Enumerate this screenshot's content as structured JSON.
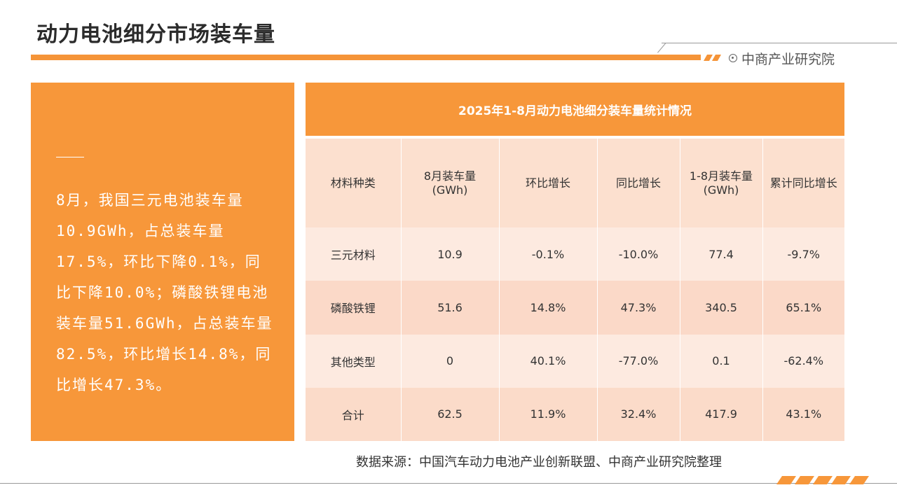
{
  "header": {
    "title": "动力电池细分市场装车量",
    "brand": "中商产业研究院"
  },
  "summary": {
    "text": "8月，我国三元电池装车量10.9GWh，占总装车量17.5%，环比下降0.1%，同比下降10.0%；磷酸铁锂电池装车量51.6GWh，占总装车量82.5%，环比增长14.8%，同比增长47.3%。"
  },
  "table": {
    "title": "2025年1-8月动力电池细分装车量统计情况",
    "columns": [
      "材料种类",
      "8月装车量\n(GWh)",
      "环比增长",
      "同比增长",
      "1-8月装车量\n(GWh)",
      "累计同比增长"
    ],
    "rows": [
      [
        "三元材料",
        "10.9",
        "-0.1%",
        "-10.0%",
        "77.4",
        "-9.7%"
      ],
      [
        "磷酸铁锂",
        "51.6",
        "14.8%",
        "47.3%",
        "340.5",
        "65.1%"
      ],
      [
        "其他类型",
        "0",
        "40.1%",
        "-77.0%",
        "0.1",
        "-62.4%"
      ],
      [
        "合计",
        "62.5",
        "11.9%",
        "32.4%",
        "417.9",
        "43.1%"
      ]
    ]
  },
  "footer": {
    "source": "数据来源：中国汽车动力电池产业创新联盟、中商产业研究院整理"
  },
  "colors": {
    "accent": "#f7973a",
    "row_light": "#fdeae0",
    "row_dark": "#fbd9c8"
  }
}
